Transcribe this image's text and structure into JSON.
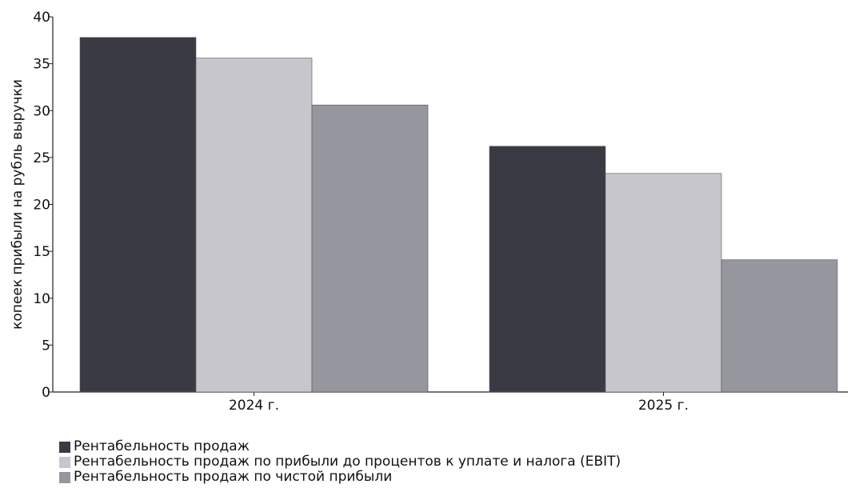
{
  "chart_data": {
    "type": "bar",
    "title": "",
    "xlabel": "",
    "ylabel": "копеек прибыли на рубль выручки",
    "ylim": [
      0,
      40
    ],
    "yticks": [
      0,
      5,
      10,
      15,
      20,
      25,
      30,
      35,
      40
    ],
    "categories": [
      "2024 г.",
      "2025 г."
    ],
    "series": [
      {
        "name": "Рентабельность продаж",
        "values": [
          37.8,
          26.2
        ],
        "color": "#3a3a44"
      },
      {
        "name": "Рентабельность продаж по прибыли до процентов к уплате и налога (EBIT)",
        "values": [
          35.6,
          23.3
        ],
        "color": "#c6c6cc"
      },
      {
        "name": "Рентабельность продаж по чистой прибыли",
        "values": [
          30.6,
          14.1
        ],
        "color": "#96969e"
      }
    ],
    "legend_position": "bottom-left",
    "grid": false
  }
}
